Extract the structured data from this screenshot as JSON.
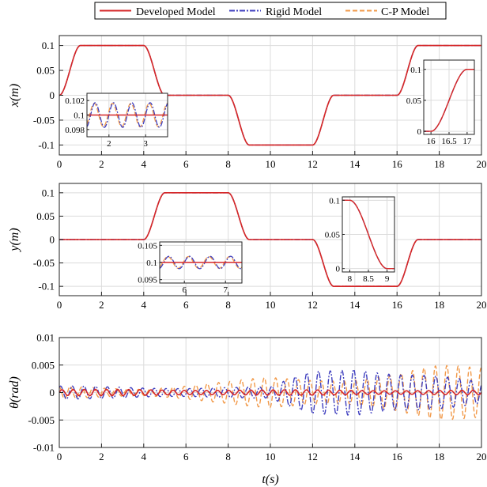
{
  "legend": {
    "items": [
      {
        "label": "Developed Model",
        "color": "#d62728",
        "dash": "solid"
      },
      {
        "label": "Rigid Model",
        "color": "#3f3fbf",
        "dash": "dashdot"
      },
      {
        "label": "C-P Model",
        "color": "#f29a4a",
        "dash": "dashed"
      }
    ]
  },
  "xlabel": "t(s)",
  "chart_data": [
    {
      "type": "line",
      "ylabel": "x(m)",
      "xlim": [
        0,
        20
      ],
      "ylim": [
        -0.12,
        0.12
      ],
      "xticks": [
        0,
        2,
        4,
        6,
        8,
        10,
        12,
        14,
        16,
        18,
        20
      ],
      "yticks": [
        0.1,
        0.05,
        0,
        -0.05,
        -0.1
      ],
      "ytick_labels": [
        "0.1",
        "0.05",
        "0",
        "-0.05",
        "-0.1"
      ],
      "grid": true,
      "x": [
        0,
        1,
        4,
        5,
        8,
        9,
        12,
        13,
        16,
        17,
        20
      ],
      "y": [
        0,
        0.1,
        0.1,
        0,
        0,
        -0.1,
        -0.1,
        0,
        0,
        0.1,
        0.1
      ],
      "insets": [
        {
          "xlim": [
            1.4,
            3.6
          ],
          "ylim": [
            0.097,
            0.103
          ],
          "xticks": [
            2,
            3
          ],
          "yticks": [
            0.102,
            0.1,
            0.098
          ],
          "ytick_labels": [
            "0.102",
            "0.1",
            "0.098"
          ],
          "kind": "oscillation",
          "osc_amp": 0.0017,
          "osc_freq": 2.0,
          "base": 0.1
        },
        {
          "xlim": [
            15.8,
            17.2
          ],
          "ylim": [
            -0.005,
            0.115
          ],
          "xticks": [
            16,
            16.5,
            17
          ],
          "yticks": [
            0.1,
            0.05,
            0
          ],
          "ytick_labels": [
            "0.1",
            "0.05",
            "0"
          ],
          "kind": "rise",
          "t0": 16,
          "t1": 17,
          "y0": 0,
          "y1": 0.1
        }
      ]
    },
    {
      "type": "line",
      "ylabel": "y(m)",
      "xlim": [
        0,
        20
      ],
      "ylim": [
        -0.12,
        0.12
      ],
      "xticks": [
        0,
        2,
        4,
        6,
        8,
        10,
        12,
        14,
        16,
        18,
        20
      ],
      "yticks": [
        0.1,
        0.05,
        0,
        -0.05,
        -0.1
      ],
      "ytick_labels": [
        "0.1",
        "0.05",
        "0",
        "-0.05",
        "-0.1"
      ],
      "grid": true,
      "x": [
        0,
        4,
        5,
        8,
        9,
        12,
        13,
        16,
        17,
        20
      ],
      "y": [
        0,
        0,
        0.1,
        0.1,
        0,
        0,
        -0.1,
        -0.1,
        0,
        0
      ],
      "insets": [
        {
          "xlim": [
            5.4,
            7.4
          ],
          "ylim": [
            0.094,
            0.106
          ],
          "xticks": [
            6,
            7
          ],
          "yticks": [
            0.105,
            0.1,
            0.095
          ],
          "ytick_labels": [
            "0.105",
            "0.1",
            "0.095"
          ],
          "kind": "oscillation",
          "osc_amp": 0.0018,
          "osc_freq": 2.0,
          "base": 0.1
        },
        {
          "xlim": [
            7.8,
            9.2
          ],
          "ylim": [
            -0.005,
            0.105
          ],
          "xticks": [
            8,
            8.5,
            9
          ],
          "yticks": [
            0.1,
            0.05,
            0
          ],
          "ytick_labels": [
            "0.1",
            "0.05",
            "0"
          ],
          "kind": "fall",
          "t0": 8,
          "t1": 9,
          "y0": 0.1,
          "y1": 0
        }
      ]
    },
    {
      "type": "line",
      "ylabel": "θ(rad)",
      "xlim": [
        0,
        20
      ],
      "ylim": [
        -0.01,
        0.01
      ],
      "xticks": [
        0,
        2,
        4,
        6,
        8,
        10,
        12,
        14,
        16,
        18,
        20
      ],
      "yticks": [
        0.01,
        0.005,
        0,
        -0.005,
        -0.01
      ],
      "ytick_labels": [
        "0.01",
        "0.005",
        "0",
        "-0.005",
        "-0.01"
      ],
      "grid": true,
      "series": [
        {
          "name": "Developed Model",
          "envelope": {
            "x": [
              0,
              20
            ],
            "amp": [
              0.0006,
              0.0004
            ]
          },
          "freq": 1.9
        },
        {
          "name": "Rigid Model",
          "envelope": {
            "x": [
              0,
              6,
              10,
              12,
              14,
              16,
              20
            ],
            "amp": [
              0.0012,
              0.001,
              0.001,
              0.0045,
              0.006,
              0.004,
              0.002
            ]
          },
          "freq": 1.8
        },
        {
          "name": "C-P Model",
          "envelope": {
            "x": [
              0,
              4,
              8,
              10,
              12,
              14,
              16,
              18,
              20
            ],
            "amp": [
              0.0012,
              0.0008,
              0.002,
              0.003,
              0.003,
              0.003,
              0.0035,
              0.005,
              0.0055
            ]
          },
          "freq": 1.85
        }
      ]
    }
  ]
}
